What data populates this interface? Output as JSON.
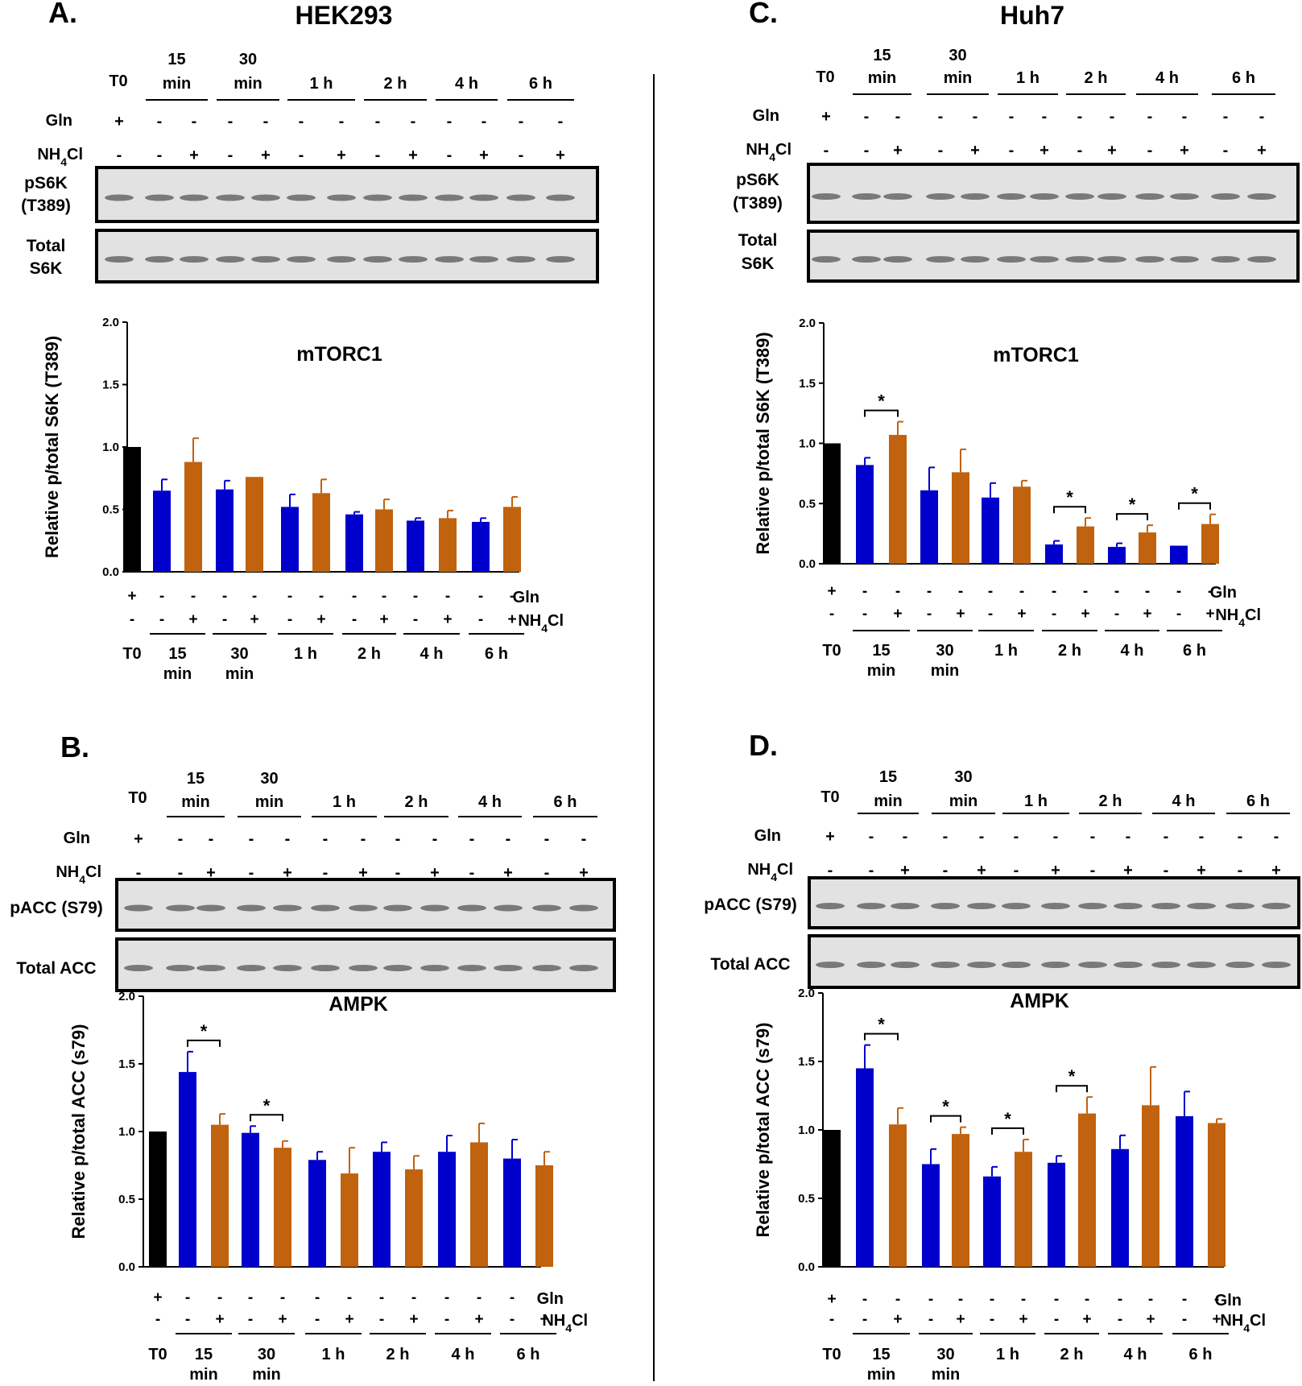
{
  "colors": {
    "black": "#000000",
    "blue": "#0000cc",
    "orange": "#c0620e",
    "band": "#555555"
  },
  "timepoints": [
    "T0",
    "15 min",
    "30 min",
    "1 h",
    "2 h",
    "4 h",
    "6 h"
  ],
  "row_labels": {
    "gln": "Gln",
    "nh4cl": "NH4Cl",
    "plus": "+",
    "minus": "-"
  },
  "panels": [
    {
      "letter": "A.",
      "cell_line": "HEK293",
      "blot_labels": [
        "pS6K\n(T389)",
        "Total\nS6K"
      ],
      "chart_data": {
        "type": "bar",
        "title": "mTORC1",
        "ylabel": "Relative p/total S6K (T389)",
        "ylim": [
          0,
          2.0
        ],
        "yticks": [
          "0.0",
          "0.5",
          "1.0",
          "1.5",
          "2.0"
        ],
        "categories": [
          "T0",
          "15 min -",
          "15 min +",
          "30 min -",
          "30 min +",
          "1 h -",
          "1 h +",
          "2 h -",
          "2 h +",
          "4 h -",
          "4 h +",
          "6 h -",
          "6 h +"
        ],
        "values": [
          1.0,
          0.65,
          0.88,
          0.66,
          0.76,
          0.52,
          0.63,
          0.46,
          0.5,
          0.41,
          0.43,
          0.4,
          0.52
        ],
        "errors": [
          0,
          0.09,
          0.19,
          0.07,
          0.0,
          0.1,
          0.11,
          0.02,
          0.08,
          0.02,
          0.06,
          0.03,
          0.08
        ],
        "significance": []
      }
    },
    {
      "letter": "B.",
      "cell_line": "",
      "blot_labels": [
        "pACC (S79)",
        "Total ACC"
      ],
      "chart_data": {
        "type": "bar",
        "title": "AMPK",
        "ylabel": "Relative p/total ACC (s79)",
        "ylim": [
          0,
          2.0
        ],
        "yticks": [
          "0.0",
          "0.5",
          "1.0",
          "1.5",
          "2.0"
        ],
        "categories": [
          "T0",
          "15 min -",
          "15 min +",
          "30 min -",
          "30 min +",
          "1 h -",
          "1 h +",
          "2 h -",
          "2 h +",
          "4 h -",
          "4 h +",
          "6 h -",
          "6 h +"
        ],
        "values": [
          1.0,
          1.44,
          1.05,
          0.99,
          0.88,
          0.79,
          0.69,
          0.85,
          0.72,
          0.85,
          0.92,
          0.8,
          0.75
        ],
        "errors": [
          0,
          0.15,
          0.08,
          0.05,
          0.05,
          0.06,
          0.19,
          0.07,
          0.1,
          0.12,
          0.14,
          0.14,
          0.1
        ],
        "significance": [
          [
            1,
            2
          ],
          [
            3,
            4
          ]
        ]
      }
    },
    {
      "letter": "C.",
      "cell_line": "Huh7",
      "blot_labels": [
        "pS6K\n(T389)",
        "Total\nS6K"
      ],
      "chart_data": {
        "type": "bar",
        "title": "mTORC1",
        "ylabel": "Relative p/total S6K (T389)",
        "ylim": [
          0,
          2.0
        ],
        "yticks": [
          "0.0",
          "0.5",
          "1.0",
          "1.5",
          "2.0"
        ],
        "categories": [
          "T0",
          "15 min -",
          "15 min +",
          "30 min -",
          "30 min +",
          "1 h -",
          "1 h +",
          "2 h -",
          "2 h +",
          "4 h -",
          "4 h +",
          "6 h -",
          "6 h +"
        ],
        "values": [
          1.0,
          0.82,
          1.07,
          0.61,
          0.76,
          0.55,
          0.64,
          0.16,
          0.31,
          0.14,
          0.26,
          0.15,
          0.33
        ],
        "errors": [
          0,
          0.06,
          0.11,
          0.19,
          0.19,
          0.12,
          0.05,
          0.03,
          0.07,
          0.03,
          0.06,
          0.0,
          0.08
        ],
        "significance": [
          [
            1,
            2
          ],
          [
            7,
            8
          ],
          [
            9,
            10
          ],
          [
            11,
            12
          ]
        ]
      }
    },
    {
      "letter": "D.",
      "cell_line": "",
      "blot_labels": [
        "pACC (S79)",
        "Total ACC"
      ],
      "chart_data": {
        "type": "bar",
        "title": "AMPK",
        "ylabel": "Relative p/total ACC (s79)",
        "ylim": [
          0,
          2.0
        ],
        "yticks": [
          "0.0",
          "0.5",
          "1.0",
          "1.5",
          "2.0"
        ],
        "categories": [
          "T0",
          "15 min -",
          "15 min +",
          "30 min -",
          "30 min +",
          "1 h -",
          "1 h +",
          "2 h -",
          "2 h +",
          "4 h -",
          "4 h +",
          "6 h -",
          "6 h +"
        ],
        "values": [
          1.0,
          1.45,
          1.04,
          0.75,
          0.97,
          0.66,
          0.84,
          0.76,
          1.12,
          0.86,
          1.18,
          1.1,
          1.05
        ],
        "errors": [
          0,
          0.17,
          0.12,
          0.11,
          0.05,
          0.07,
          0.09,
          0.05,
          0.12,
          0.1,
          0.28,
          0.18,
          0.03
        ],
        "significance": [
          [
            1,
            2
          ],
          [
            3,
            4
          ],
          [
            5,
            6
          ],
          [
            7,
            8
          ]
        ]
      }
    }
  ]
}
